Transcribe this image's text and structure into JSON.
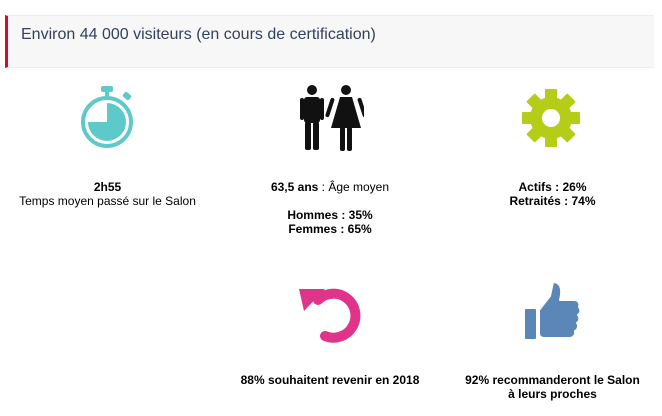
{
  "header": {
    "title": "Environ 44 000 visiteurs (en cours de certification)"
  },
  "stats": {
    "time": {
      "value": "2h55",
      "label": "Temps moyen passé sur le Salon",
      "icon": "stopwatch-icon",
      "color": "#5ec9c9"
    },
    "age": {
      "value": "63,5 ans",
      "label": " : Âge moyen",
      "men": "Hommes : 35%",
      "women": "Femmes : 65%",
      "icon": "man-woman-icon",
      "color": "#111111"
    },
    "status": {
      "active": "Actifs : 26%",
      "retired": "Retraités : 74%",
      "icon": "gear-icon",
      "color": "#b5cc18"
    },
    "return": {
      "text": "88% souhaitent revenir en 2018",
      "icon": "return-arrow-icon",
      "color": "#e0338a"
    },
    "recommend": {
      "line1": "92% recommanderont le Salon",
      "line2": "à leurs proches",
      "icon": "thumbs-up-icon",
      "color": "#5b86b8"
    }
  }
}
